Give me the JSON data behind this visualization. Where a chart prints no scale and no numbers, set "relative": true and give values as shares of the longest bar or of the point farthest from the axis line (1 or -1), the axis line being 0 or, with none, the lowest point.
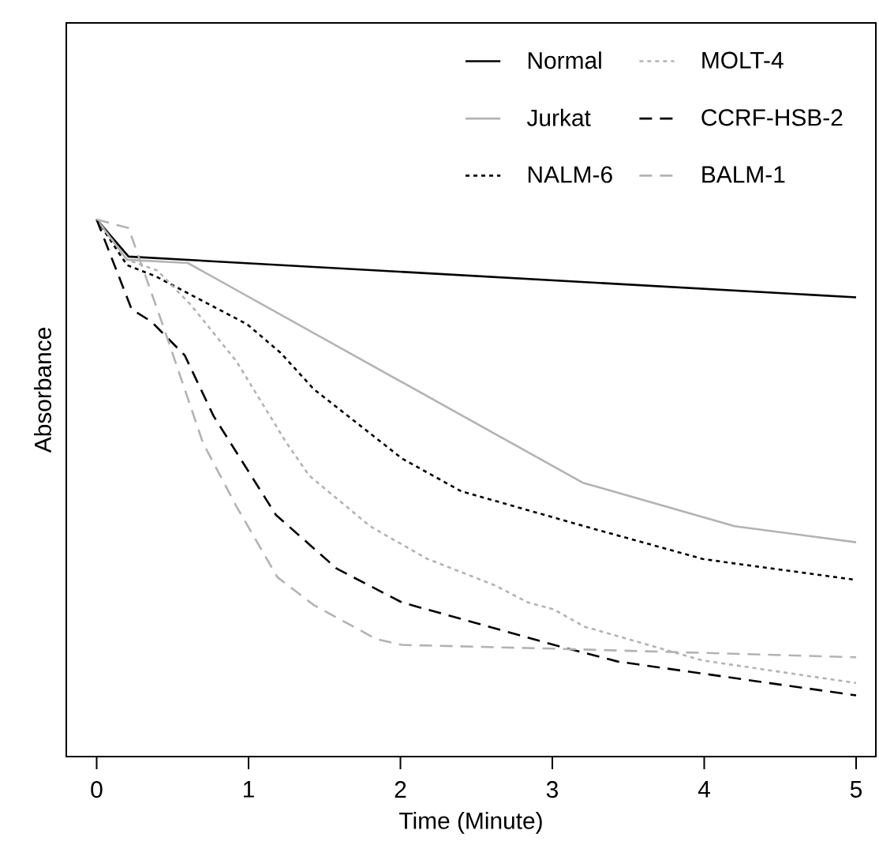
{
  "chart_data": {
    "type": "line",
    "xlabel": "Time (Minute)",
    "ylabel": "Absorbance",
    "relative": true,
    "xlim": [
      -0.2,
      5.13
    ],
    "xticks": [
      0,
      1,
      2,
      3,
      4,
      5
    ],
    "grid": false,
    "legend": "top right",
    "marker": "none",
    "series": [
      {
        "name": "Normal",
        "color": "#000000",
        "line_style": "solid",
        "x": [
          0,
          0.21,
          5
        ],
        "values": [
          1,
          0.931,
          0.855
        ]
      },
      {
        "name": "Jurkat",
        "color": "#b3b3b3",
        "line_style": "solid",
        "x": [
          0,
          0.2,
          0.6,
          3.2,
          4.2,
          5
        ],
        "values": [
          1,
          0.925,
          0.919,
          0.51,
          0.429,
          0.399
        ]
      },
      {
        "name": "NALM-6",
        "color": "#000000",
        "line_style": "dotted",
        "x": [
          0,
          0.2,
          0.39,
          0.99,
          1.21,
          1.43,
          1.88,
          2.01,
          2.4,
          3.21,
          3.99,
          4.24,
          5
        ],
        "values": [
          1,
          0.915,
          0.894,
          0.805,
          0.752,
          0.684,
          0.584,
          0.555,
          0.494,
          0.429,
          0.368,
          0.358,
          0.329
        ]
      },
      {
        "name": "MOLT-4",
        "color": "#b3b3b3",
        "line_style": "dotted",
        "x": [
          0,
          0.2,
          0.4,
          0.62,
          0.92,
          1.25,
          1.4,
          1.8,
          2.17,
          2.62,
          2.84,
          3.01,
          3.21,
          3.99,
          5
        ],
        "values": [
          1,
          0.925,
          0.905,
          0.841,
          0.736,
          0.584,
          0.523,
          0.429,
          0.369,
          0.319,
          0.287,
          0.274,
          0.242,
          0.179,
          0.137
        ]
      },
      {
        "name": "CCRF-HSB-2",
        "color": "#000000",
        "line_style": "dashed",
        "x": [
          0,
          0.23,
          0.36,
          0.58,
          0.77,
          1.18,
          1.58,
          2.01,
          3.01,
          3.43,
          5
        ],
        "values": [
          1,
          0.833,
          0.81,
          0.747,
          0.634,
          0.45,
          0.35,
          0.287,
          0.208,
          0.177,
          0.114
        ]
      },
      {
        "name": "BALM-1",
        "color": "#b3b3b3",
        "line_style": "dashed",
        "x": [
          0,
          0.21,
          0.44,
          0.7,
          0.92,
          1.19,
          1.43,
          1.84,
          2.01,
          3.0,
          5
        ],
        "values": [
          1,
          0.984,
          0.8,
          0.584,
          0.466,
          0.334,
          0.282,
          0.219,
          0.208,
          0.201,
          0.185
        ]
      }
    ]
  }
}
